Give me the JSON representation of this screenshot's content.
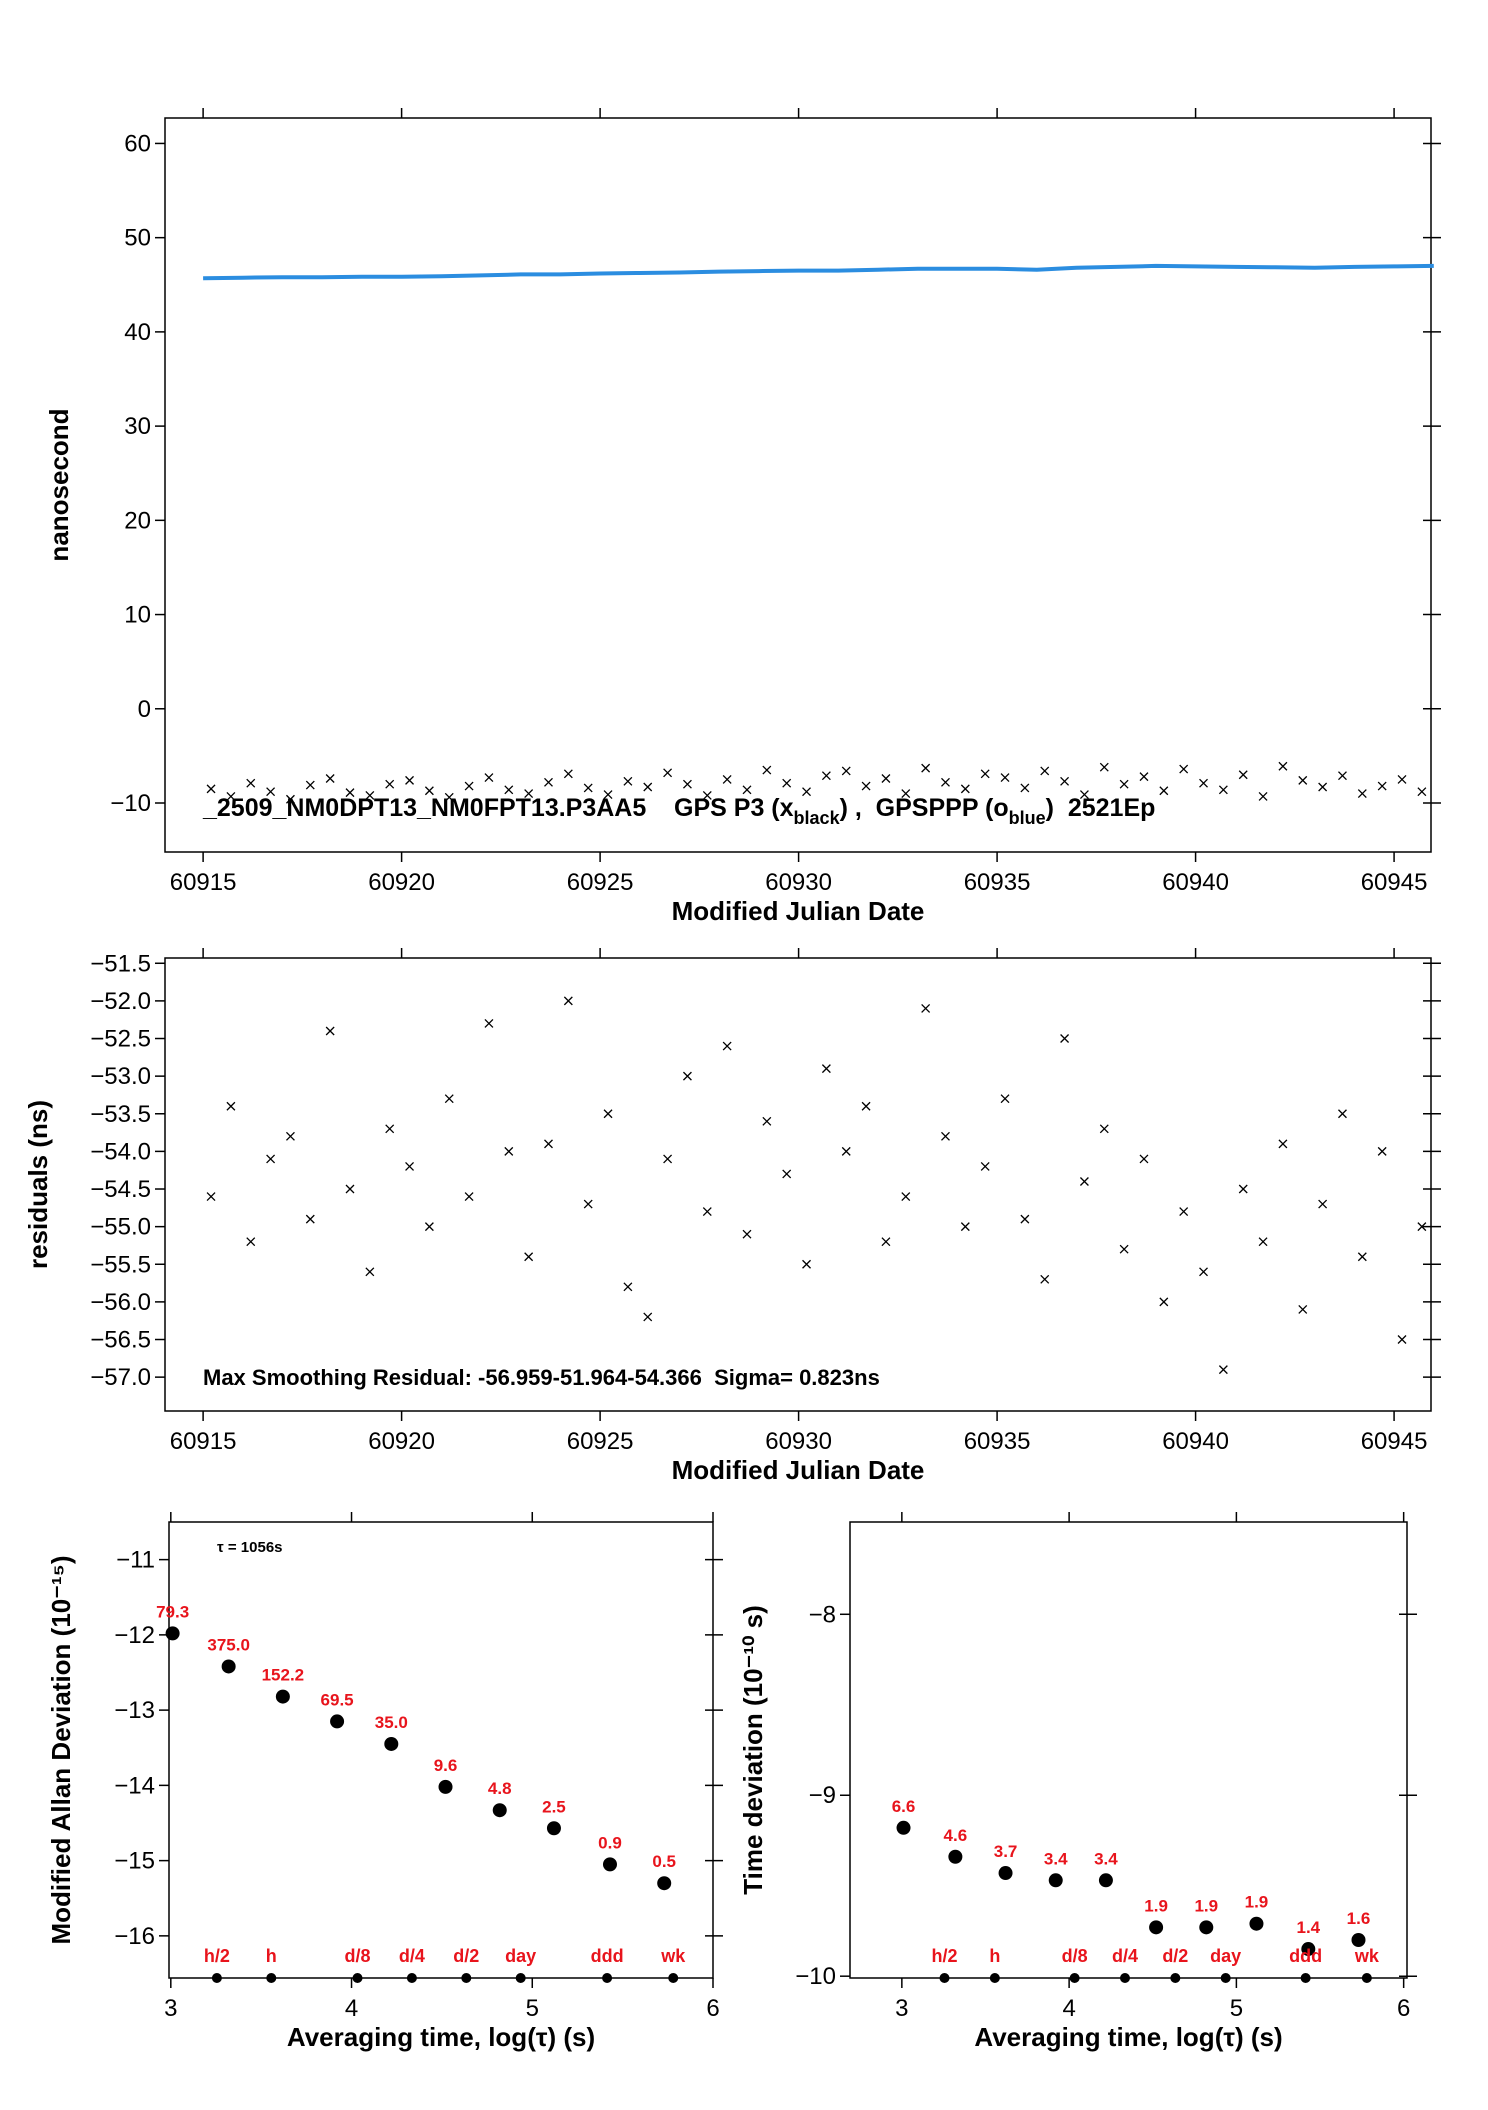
{
  "chart_data": [
    {
      "type": "scatter",
      "xlabel": "Modified Julian Date",
      "ylabel": "nanosecond",
      "xlim": [
        60914.04,
        60945.93
      ],
      "ylim": [
        -15.2,
        62.7
      ],
      "xticks": [
        60915,
        60920,
        60925,
        60930,
        60935,
        60940,
        60945
      ],
      "yticks": [
        {
          "value": -10,
          "label": "−10"
        },
        0,
        10,
        20,
        30,
        40,
        50,
        60
      ],
      "annotation_parts": [
        "_2509_NM0DPT13_NM0FPT13.P3AA5    GPS P3 (x",
        "black",
        ") ,  GPSPPP (o",
        "blue",
        ")  2521Ep"
      ],
      "series": [
        {
          "color": "#2b8de0",
          "marker": "line",
          "x": [
            60915,
            60916,
            60917,
            60918,
            60919,
            60920,
            60921,
            60922,
            60923,
            60924,
            60925,
            60926,
            60927,
            60928,
            60929,
            60930,
            60931,
            60932,
            60933,
            60934,
            60935,
            60936,
            60937,
            60938,
            60939,
            60940,
            60941,
            60942,
            60943,
            60944,
            60945,
            60946
          ],
          "values": [
            45.7,
            45.75,
            45.8,
            45.8,
            45.85,
            45.85,
            45.9,
            46.0,
            46.1,
            46.1,
            46.2,
            46.25,
            46.3,
            46.4,
            46.45,
            46.5,
            46.5,
            46.6,
            46.7,
            46.7,
            46.7,
            46.6,
            46.8,
            46.9,
            47.0,
            46.95,
            46.9,
            46.85,
            46.8,
            46.9,
            46.95,
            47.0
          ]
        },
        {
          "color": "#000000",
          "marker": "x",
          "x": [
            60915.2,
            60915.7,
            60916.2,
            60916.7,
            60917.2,
            60917.7,
            60918.2,
            60918.7,
            60919.2,
            60919.7,
            60920.2,
            60920.7,
            60921.2,
            60921.7,
            60922.2,
            60922.7,
            60923.2,
            60923.7,
            60924.2,
            60924.7,
            60925.2,
            60925.7,
            60926.2,
            60926.7,
            60927.2,
            60927.7,
            60928.2,
            60928.7,
            60929.2,
            60929.7,
            60930.2,
            60930.7,
            60931.2,
            60931.7,
            60932.2,
            60932.7,
            60933.2,
            60933.7,
            60934.2,
            60934.7,
            60935.2,
            60935.7,
            60936.2,
            60936.7,
            60937.2,
            60937.7,
            60938.2,
            60938.7,
            60939.2,
            60939.7,
            60940.2,
            60940.7,
            60941.2,
            60941.7,
            60942.2,
            60942.7,
            60943.2,
            60943.7,
            60944.2,
            60944.7,
            60945.2,
            60945.7
          ],
          "values": [
            -8.5,
            -9.3,
            -7.9,
            -8.8,
            -9.6,
            -8.1,
            -7.4,
            -8.9,
            -9.2,
            -8.0,
            -7.6,
            -8.7,
            -9.4,
            -8.2,
            -7.3,
            -8.6,
            -9.0,
            -7.8,
            -6.9,
            -8.4,
            -9.1,
            -7.7,
            -8.3,
            -6.8,
            -8.0,
            -9.2,
            -7.5,
            -8.6,
            -6.5,
            -7.9,
            -8.8,
            -7.1,
            -6.6,
            -8.2,
            -7.4,
            -9.0,
            -6.3,
            -7.8,
            -8.5,
            -6.9,
            -7.3,
            -8.4,
            -6.6,
            -7.7,
            -9.1,
            -6.2,
            -8.0,
            -7.2,
            -8.7,
            -6.4,
            -7.9,
            -8.6,
            -7.0,
            -9.3,
            -6.1,
            -7.6,
            -8.3,
            -7.1,
            -9.0,
            -8.2,
            -7.5,
            -8.8
          ]
        }
      ]
    },
    {
      "type": "scatter",
      "xlabel": "Modified Julian Date",
      "ylabel": "residuals (ns)",
      "xlim": [
        60914.04,
        60945.93
      ],
      "ylim": [
        -57.45,
        -51.43
      ],
      "xticks": [
        60915,
        60920,
        60925,
        60930,
        60935,
        60940,
        60945
      ],
      "yticks": [
        {
          "value": -51.5,
          "label": "−51.5"
        },
        {
          "value": -52,
          "label": "−52.0"
        },
        {
          "value": -52.5,
          "label": "−52.5"
        },
        {
          "value": -53,
          "label": "−53.0"
        },
        {
          "value": -53.5,
          "label": "−53.5"
        },
        {
          "value": -54,
          "label": "−54.0"
        },
        {
          "value": -54.5,
          "label": "−54.5"
        },
        {
          "value": -55,
          "label": "−55.0"
        },
        {
          "value": -55.5,
          "label": "−55.5"
        },
        {
          "value": -56,
          "label": "−56.0"
        },
        {
          "value": -56.5,
          "label": "−56.5"
        },
        {
          "value": -57,
          "label": "−57.0"
        }
      ],
      "annotation": "Max Smoothing Residual: -56.959-51.964-54.366  Sigma= 0.823ns",
      "series": [
        {
          "color": "#000000",
          "marker": "x",
          "x": [
            60915.2,
            60915.7,
            60916.2,
            60916.7,
            60917.2,
            60917.7,
            60918.2,
            60918.7,
            60919.2,
            60919.7,
            60920.2,
            60920.7,
            60921.2,
            60921.7,
            60922.2,
            60922.7,
            60923.2,
            60923.7,
            60924.2,
            60924.7,
            60925.2,
            60925.7,
            60926.2,
            60926.7,
            60927.2,
            60927.7,
            60928.2,
            60928.7,
            60929.2,
            60929.7,
            60930.2,
            60930.7,
            60931.2,
            60931.7,
            60932.2,
            60932.7,
            60933.2,
            60933.7,
            60934.2,
            60934.7,
            60935.2,
            60935.7,
            60936.2,
            60936.7,
            60937.2,
            60937.7,
            60938.2,
            60938.7,
            60939.2,
            60939.7,
            60940.2,
            60940.7,
            60941.2,
            60941.7,
            60942.2,
            60942.7,
            60943.2,
            60943.7,
            60944.2,
            60944.7,
            60945.2,
            60945.7
          ],
          "values": [
            -54.6,
            -53.4,
            -55.2,
            -54.1,
            -53.8,
            -54.9,
            -52.4,
            -54.5,
            -55.6,
            -53.7,
            -54.2,
            -55.0,
            -53.3,
            -54.6,
            -52.3,
            -54.0,
            -55.4,
            -53.9,
            -52.0,
            -54.7,
            -53.5,
            -55.8,
            -56.2,
            -54.1,
            -53.0,
            -54.8,
            -52.6,
            -55.1,
            -53.6,
            -54.3,
            -55.5,
            -52.9,
            -54.0,
            -53.4,
            -55.2,
            -54.6,
            -52.1,
            -53.8,
            -55.0,
            -54.2,
            -53.3,
            -54.9,
            -55.7,
            -52.5,
            -54.4,
            -53.7,
            -55.3,
            -54.1,
            -56.0,
            -54.8,
            -55.6,
            -56.9,
            -54.5,
            -55.2,
            -53.9,
            -56.1,
            -54.7,
            -53.5,
            -55.4,
            -54.0,
            -56.5,
            -55.0
          ]
        }
      ]
    },
    {
      "type": "scatter",
      "xlabel": "Averaging time, log(τ) (s)",
      "ylabel": "Modified Allan Deviation (10⁻¹⁵)",
      "xlim": [
        2.99,
        6.0
      ],
      "ylim": [
        -16.56,
        -10.5
      ],
      "xticks": [
        3,
        4,
        5,
        6
      ],
      "yticks": [
        {
          "value": -11,
          "label": "−11"
        },
        {
          "value": -12,
          "label": "−12"
        },
        {
          "value": -13,
          "label": "−13"
        },
        {
          "value": -14,
          "label": "−14"
        },
        {
          "value": -15,
          "label": "−15"
        },
        {
          "value": -16,
          "label": "−16"
        }
      ],
      "annotation": "τ = 1056s",
      "series": [
        {
          "color": "#000000",
          "marker": "dot",
          "label_color": "#e8141c",
          "x": [
            3.01,
            3.32,
            3.62,
            3.92,
            4.22,
            4.52,
            4.82,
            5.12,
            5.43,
            5.73
          ],
          "values": [
            -11.98,
            -12.42,
            -12.82,
            -13.15,
            -13.45,
            -14.02,
            -14.33,
            -14.57,
            -15.05,
            -15.3
          ],
          "point_labels": [
            "79.3",
            "375.0",
            "152.2",
            "69.5",
            "35.0",
            "9.6",
            "4.8",
            "2.5",
            "0.9",
            "0.5"
          ]
        }
      ],
      "scale_marks": {
        "x": [
          3.255,
          3.556,
          4.033,
          4.334,
          4.635,
          4.936,
          5.414,
          5.78
        ],
        "labels": [
          "h/2",
          "h",
          "d/8",
          "d/4",
          "d/2",
          "day",
          "ddd",
          "wk"
        ]
      }
    },
    {
      "type": "scatter",
      "xlabel": "Averaging time, log(τ) (s)",
      "ylabel": "Time deviation (10⁻¹⁰ s)",
      "xlim": [
        2.69,
        6.02
      ],
      "ylim": [
        -10.01,
        -7.49
      ],
      "xticks": [
        3,
        4,
        5,
        6
      ],
      "yticks": [
        {
          "value": -8,
          "label": "−8"
        },
        {
          "value": -9,
          "label": "−9"
        },
        {
          "value": -10,
          "label": "−10"
        }
      ],
      "series": [
        {
          "color": "#000000",
          "marker": "dot",
          "label_color": "#e8141c",
          "x": [
            3.01,
            3.32,
            3.62,
            3.92,
            4.22,
            4.52,
            4.82,
            5.12,
            5.43,
            5.73
          ],
          "values": [
            -9.18,
            -9.34,
            -9.43,
            -9.47,
            -9.47,
            -9.73,
            -9.73,
            -9.71,
            -9.85,
            -9.8
          ],
          "point_labels": [
            "6.6",
            "4.6",
            "3.7",
            "3.4",
            "3.4",
            "1.9",
            "1.9",
            "1.9",
            "1.4",
            "1.6"
          ]
        }
      ],
      "scale_marks": {
        "x": [
          3.255,
          3.556,
          4.033,
          4.334,
          4.635,
          4.936,
          5.414,
          5.78
        ],
        "labels": [
          "h/2",
          "h",
          "d/8",
          "d/4",
          "d/2",
          "day",
          "ddd",
          "wk"
        ]
      }
    }
  ]
}
